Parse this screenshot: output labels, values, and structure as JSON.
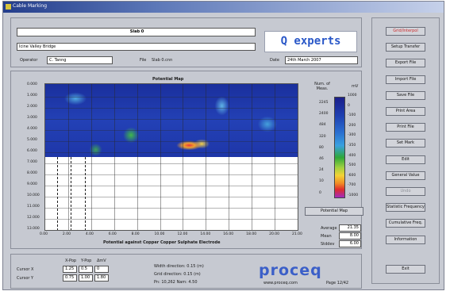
{
  "window": {
    "title": "Cable Marking"
  },
  "header": {
    "file_value": "Slab 0",
    "description_value": "Icine Valley Bridge",
    "operator_label": "Operator",
    "operator_value": "C. Tanng",
    "file_label": "File",
    "file_name": "Slab 0.cnn",
    "date_label": "Date",
    "date_value": "24th March 2007"
  },
  "logo_text": "Q experts",
  "buttons": [
    {
      "label": "Grid/Interpol",
      "state": "red"
    },
    {
      "label": "Setup Transfer",
      "state": "normal"
    },
    {
      "label": "Export File",
      "state": "normal"
    },
    {
      "label": "Import File",
      "state": "normal"
    },
    {
      "label": "Save File",
      "state": "normal"
    },
    {
      "label": "Print Area",
      "state": "normal"
    },
    {
      "label": "Print File",
      "state": "normal"
    },
    {
      "label": "Set Mark",
      "state": "normal"
    },
    {
      "label": "Edit",
      "state": "normal"
    },
    {
      "label": "General Value",
      "state": "normal"
    },
    {
      "label": "Undo",
      "state": "dim"
    },
    {
      "label": "Statistic Frequency",
      "state": "normal"
    },
    {
      "label": "Cumulative Freq.",
      "state": "normal"
    },
    {
      "label": "Information",
      "state": "normal"
    }
  ],
  "exit_label": "Exit",
  "chart_data": {
    "type": "heatmap",
    "title": "Potential Map",
    "xlabel": "Potential against Copper Copper Sulphate Electrode",
    "y_ticks": [
      "0.000",
      "1.000",
      "2.000",
      "3.000",
      "4.000",
      "5.000",
      "6.000",
      "7.000",
      "8.000",
      "9.000",
      "10.000",
      "11.000",
      "12.000",
      "13.000"
    ],
    "x_ticks": [
      "0.00",
      "2.00",
      "4.00",
      "6.00",
      "8.00",
      "10.00",
      "12.00",
      "14.00",
      "16.00",
      "18.00",
      "20.00",
      "21.00"
    ],
    "legend_header_left": "Num. of Meas.",
    "legend_header_right": "mV",
    "legend_counts": [
      "2245",
      "2400",
      "484",
      "320",
      "80",
      "46",
      "24",
      "10",
      "0"
    ],
    "legend_mv": [
      "1000",
      "0",
      "-100",
      "-200",
      "-300",
      "-350",
      "-400",
      "-500",
      "-600",
      "-700",
      "-1000"
    ],
    "grid": true
  },
  "potential_map_button": "Potential Map",
  "stats": {
    "rows": [
      {
        "label": "Average",
        "value": "21.35"
      },
      {
        "label": "Mean",
        "value": "8.00"
      },
      {
        "label": "Stddev",
        "value": "6.00"
      }
    ]
  },
  "bottom": {
    "col_headers": [
      "X-Pop",
      "Y-Pop",
      "ΔmV"
    ],
    "rows": [
      {
        "label": "Cursor X",
        "values": [
          "1.25",
          "0.5",
          "0"
        ]
      },
      {
        "label": "Cursor Y",
        "values": [
          "0.75",
          "1.00",
          "1.80"
        ]
      }
    ],
    "info": [
      "Width direction:  0.15 (m)",
      "Grid direction:   0.15 (m)",
      "Pn: 10,262     Nam: 4.50"
    ],
    "url": "www.proceq.com",
    "page_text": "Page 12/42"
  },
  "proceq_logo": "proceq"
}
